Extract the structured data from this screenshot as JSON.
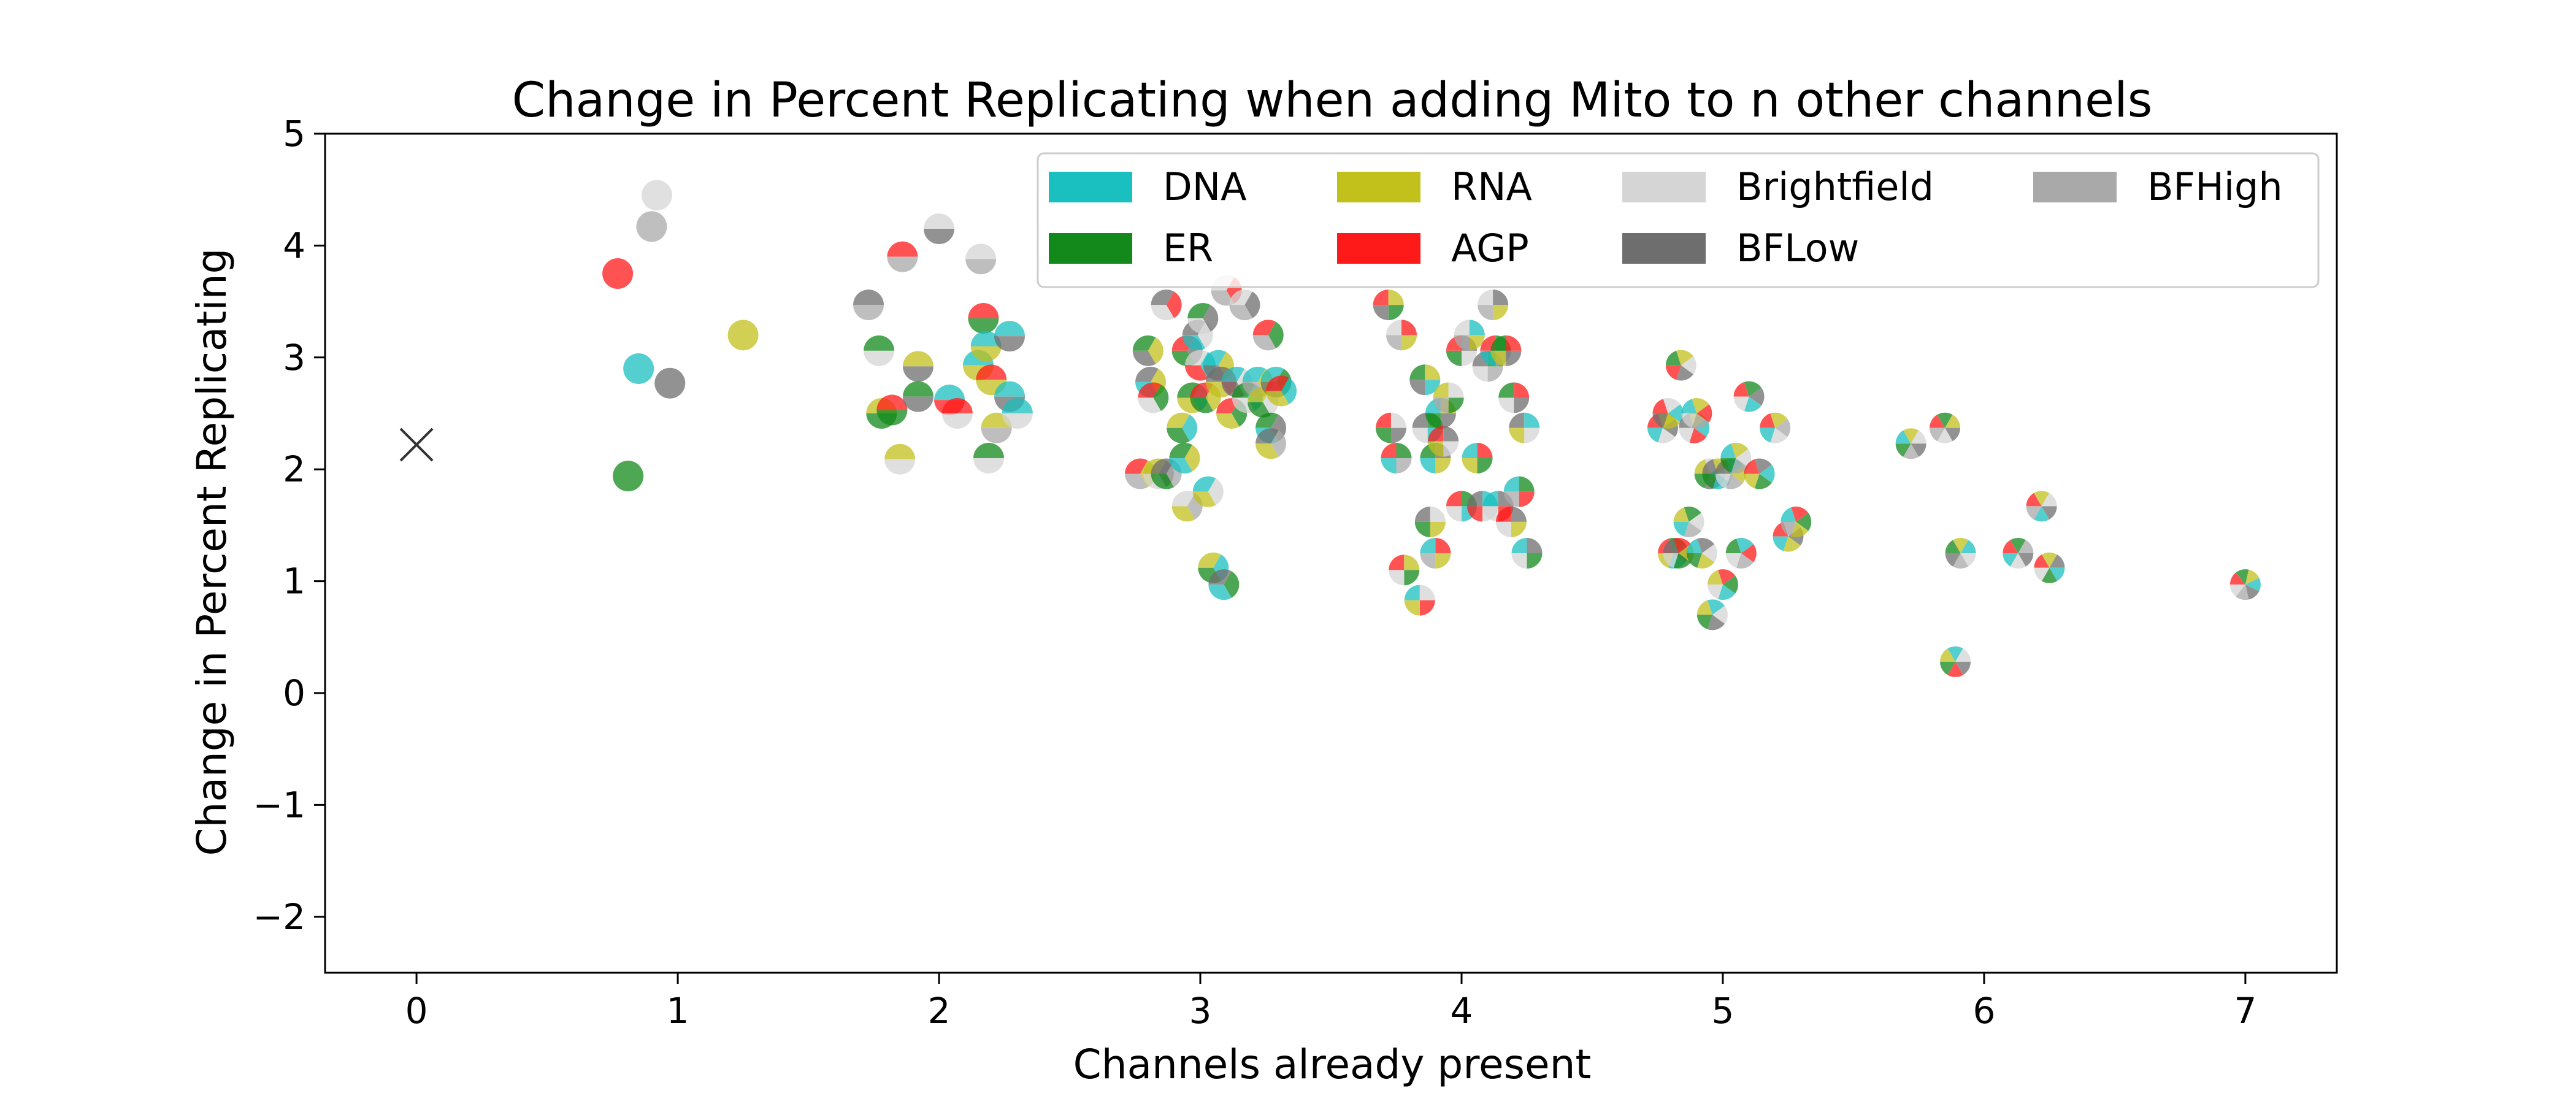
{
  "chart_data": {
    "type": "scatter",
    "title": "Change in Percent Replicating when adding Mito to n other channels",
    "xlabel": "Channels already present",
    "ylabel": "Change in Percent Replicating",
    "xlim": [
      -0.35,
      7.35
    ],
    "ylim": [
      -2.5,
      5
    ],
    "xticks": [
      0,
      1,
      2,
      3,
      4,
      5,
      6,
      7
    ],
    "yticks": [
      -2,
      -1,
      0,
      1,
      2,
      3,
      4,
      5
    ],
    "grid": false,
    "legend_position": "top-right",
    "legend_ncol": 4,
    "channels": [
      {
        "key": "DNA",
        "name": "DNA",
        "color": "#1ABFC0"
      },
      {
        "key": "ER",
        "name": "ER",
        "color": "#12891A"
      },
      {
        "key": "RNA",
        "name": "RNA",
        "color": "#C2C01B"
      },
      {
        "key": "AGP",
        "name": "AGP",
        "color": "#FF1A1A"
      },
      {
        "key": "Brightfield",
        "name": "Brightfield",
        "color": "#D5D5D5"
      },
      {
        "key": "BFLow",
        "name": "BFLow",
        "color": "#6E6E6E"
      },
      {
        "key": "BFHigh",
        "name": "BFHigh",
        "color": "#A9A9A9"
      }
    ],
    "baseline_point": {
      "x": 0,
      "y": 2.22,
      "marker": "x"
    },
    "points": [
      {
        "x": 0.77,
        "y": 3.75,
        "channels": [
          "AGP"
        ]
      },
      {
        "x": 0.85,
        "y": 2.9,
        "channels": [
          "DNA"
        ]
      },
      {
        "x": 0.81,
        "y": 1.94,
        "channels": [
          "ER"
        ]
      },
      {
        "x": 0.92,
        "y": 4.45,
        "channels": [
          "Brightfield"
        ]
      },
      {
        "x": 0.9,
        "y": 4.17,
        "channels": [
          "BFHigh"
        ]
      },
      {
        "x": 0.97,
        "y": 2.77,
        "channels": [
          "BFLow"
        ]
      },
      {
        "x": 1.25,
        "y": 3.2,
        "channels": [
          "RNA"
        ]
      },
      {
        "x": 1.73,
        "y": 3.47,
        "channels": [
          "BFLow",
          "BFHigh"
        ]
      },
      {
        "x": 1.77,
        "y": 3.06,
        "channels": [
          "ER",
          "Brightfield"
        ]
      },
      {
        "x": 1.78,
        "y": 2.5,
        "channels": [
          "RNA",
          "ER"
        ]
      },
      {
        "x": 1.82,
        "y": 2.53,
        "channels": [
          "AGP",
          "ER"
        ]
      },
      {
        "x": 1.86,
        "y": 3.9,
        "channels": [
          "AGP",
          "BFHigh"
        ]
      },
      {
        "x": 1.85,
        "y": 2.09,
        "channels": [
          "RNA",
          "Brightfield"
        ]
      },
      {
        "x": 1.92,
        "y": 2.92,
        "channels": [
          "RNA",
          "BFLow"
        ]
      },
      {
        "x": 1.92,
        "y": 2.65,
        "channels": [
          "ER",
          "BFLow"
        ]
      },
      {
        "x": 2.0,
        "y": 4.15,
        "channels": [
          "Brightfield",
          "BFLow"
        ]
      },
      {
        "x": 2.04,
        "y": 2.62,
        "channels": [
          "DNA",
          "AGP"
        ]
      },
      {
        "x": 2.07,
        "y": 2.5,
        "channels": [
          "AGP",
          "Brightfield"
        ]
      },
      {
        "x": 2.15,
        "y": 2.93,
        "channels": [
          "DNA",
          "RNA"
        ]
      },
      {
        "x": 2.17,
        "y": 3.35,
        "channels": [
          "AGP",
          "ER"
        ]
      },
      {
        "x": 2.18,
        "y": 3.1,
        "channels": [
          "DNA",
          "RNA"
        ]
      },
      {
        "x": 2.16,
        "y": 3.88,
        "channels": [
          "Brightfield",
          "BFHigh"
        ]
      },
      {
        "x": 2.2,
        "y": 2.8,
        "channels": [
          "AGP",
          "RNA"
        ]
      },
      {
        "x": 2.19,
        "y": 2.1,
        "channels": [
          "ER",
          "Brightfield"
        ]
      },
      {
        "x": 2.22,
        "y": 2.37,
        "channels": [
          "RNA",
          "BFHigh"
        ]
      },
      {
        "x": 2.27,
        "y": 2.65,
        "channels": [
          "DNA",
          "BFLow"
        ]
      },
      {
        "x": 2.27,
        "y": 3.19,
        "channels": [
          "DNA",
          "BFLow"
        ]
      },
      {
        "x": 2.3,
        "y": 2.5,
        "channels": [
          "DNA",
          "Brightfield"
        ]
      },
      {
        "x": 2.77,
        "y": 1.96,
        "channels": [
          "AGP",
          "RNA",
          "BFHigh"
        ]
      },
      {
        "x": 2.8,
        "y": 3.06,
        "channels": [
          "ER",
          "RNA",
          "BFLow"
        ]
      },
      {
        "x": 2.81,
        "y": 2.78,
        "channels": [
          "BFLow",
          "RNA",
          "DNA"
        ]
      },
      {
        "x": 2.82,
        "y": 2.64,
        "channels": [
          "AGP",
          "ER",
          "Brightfield"
        ]
      },
      {
        "x": 2.84,
        "y": 1.96,
        "channels": [
          "RNA",
          "BFLow",
          "Brightfield"
        ]
      },
      {
        "x": 2.87,
        "y": 1.96,
        "channels": [
          "BFLow",
          "BFHigh",
          "ER"
        ]
      },
      {
        "x": 2.87,
        "y": 3.47,
        "channels": [
          "BFLow",
          "AGP",
          "Brightfield"
        ]
      },
      {
        "x": 2.93,
        "y": 2.37,
        "channels": [
          "RNA",
          "DNA",
          "ER"
        ]
      },
      {
        "x": 2.94,
        "y": 2.1,
        "channels": [
          "ER",
          "RNA",
          "DNA"
        ]
      },
      {
        "x": 2.95,
        "y": 1.67,
        "channels": [
          "Brightfield",
          "BFHigh",
          "RNA"
        ]
      },
      {
        "x": 2.95,
        "y": 3.06,
        "channels": [
          "AGP",
          "BFLow",
          "ER"
        ]
      },
      {
        "x": 2.97,
        "y": 2.64,
        "channels": [
          "ER",
          "DNA",
          "RNA"
        ]
      },
      {
        "x": 2.99,
        "y": 3.2,
        "channels": [
          "BFLow",
          "Brightfield",
          "DNA"
        ]
      },
      {
        "x": 3.0,
        "y": 2.93,
        "channels": [
          "Brightfield",
          "DNA",
          "AGP"
        ]
      },
      {
        "x": 3.01,
        "y": 3.35,
        "channels": [
          "ER",
          "BFLow",
          "Brightfield"
        ]
      },
      {
        "x": 3.02,
        "y": 2.64,
        "channels": [
          "AGP",
          "RNA",
          "ER"
        ]
      },
      {
        "x": 3.03,
        "y": 1.8,
        "channels": [
          "DNA",
          "Brightfield",
          "RNA"
        ]
      },
      {
        "x": 3.05,
        "y": 1.12,
        "channels": [
          "RNA",
          "DNA",
          "ER"
        ]
      },
      {
        "x": 3.07,
        "y": 2.93,
        "channels": [
          "DNA",
          "RNA",
          "BFLow"
        ]
      },
      {
        "x": 3.08,
        "y": 2.78,
        "channels": [
          "BFLow",
          "AGP",
          "RNA"
        ]
      },
      {
        "x": 3.09,
        "y": 0.97,
        "channels": [
          "BFLow",
          "ER",
          "DNA"
        ]
      },
      {
        "x": 3.1,
        "y": 3.6,
        "channels": [
          "Brightfield",
          "AGP",
          "BFHigh"
        ]
      },
      {
        "x": 3.12,
        "y": 2.5,
        "channels": [
          "AGP",
          "ER",
          "RNA"
        ]
      },
      {
        "x": 3.14,
        "y": 2.78,
        "channels": [
          "DNA",
          "Brightfield",
          "BFLow"
        ]
      },
      {
        "x": 3.17,
        "y": 3.47,
        "channels": [
          "Brightfield",
          "BFLow",
          "BFHigh"
        ]
      },
      {
        "x": 3.18,
        "y": 2.64,
        "channels": [
          "ER",
          "DNA",
          "Brightfield"
        ]
      },
      {
        "x": 3.22,
        "y": 2.78,
        "channels": [
          "DNA",
          "RNA",
          "BFHigh"
        ]
      },
      {
        "x": 3.24,
        "y": 2.6,
        "channels": [
          "RNA",
          "Brightfield",
          "ER"
        ]
      },
      {
        "x": 3.26,
        "y": 3.2,
        "channels": [
          "AGP",
          "ER",
          "BFHigh"
        ]
      },
      {
        "x": 3.27,
        "y": 2.37,
        "channels": [
          "ER",
          "BFLow",
          "DNA"
        ]
      },
      {
        "x": 3.27,
        "y": 2.23,
        "channels": [
          "BFLow",
          "BFHigh",
          "RNA"
        ]
      },
      {
        "x": 3.29,
        "y": 2.78,
        "channels": [
          "DNA",
          "ER",
          "BFLow"
        ]
      },
      {
        "x": 3.31,
        "y": 2.7,
        "channels": [
          "AGP",
          "DNA",
          "RNA"
        ]
      },
      {
        "x": 3.72,
        "y": 3.47,
        "channels": [
          "AGP",
          "RNA",
          "ER",
          "BFLow"
        ]
      },
      {
        "x": 3.73,
        "y": 2.37,
        "channels": [
          "AGP",
          "Brightfield",
          "BFLow",
          "ER"
        ]
      },
      {
        "x": 3.75,
        "y": 2.1,
        "channels": [
          "AGP",
          "ER",
          "BFHigh",
          "DNA"
        ]
      },
      {
        "x": 3.77,
        "y": 3.2,
        "channels": [
          "Brightfield",
          "AGP",
          "RNA",
          "BFHigh"
        ]
      },
      {
        "x": 3.78,
        "y": 1.1,
        "channels": [
          "AGP",
          "RNA",
          "ER",
          "Brightfield"
        ]
      },
      {
        "x": 3.84,
        "y": 0.83,
        "channels": [
          "DNA",
          "Brightfield",
          "AGP",
          "RNA"
        ]
      },
      {
        "x": 3.86,
        "y": 2.8,
        "channels": [
          "ER",
          "RNA",
          "DNA",
          "BFLow"
        ]
      },
      {
        "x": 3.87,
        "y": 2.37,
        "channels": [
          "BFLow",
          "ER",
          "DNA",
          "Brightfield"
        ]
      },
      {
        "x": 3.88,
        "y": 1.53,
        "channels": [
          "BFLow",
          "Brightfield",
          "RNA",
          "ER"
        ]
      },
      {
        "x": 3.9,
        "y": 2.1,
        "channels": [
          "ER",
          "BFLow",
          "RNA",
          "DNA"
        ]
      },
      {
        "x": 3.9,
        "y": 1.25,
        "channels": [
          "DNA",
          "AGP",
          "RNA",
          "BFHigh"
        ]
      },
      {
        "x": 3.92,
        "y": 2.5,
        "channels": [
          "DNA",
          "RNA",
          "BFLow",
          "ER"
        ]
      },
      {
        "x": 3.93,
        "y": 2.25,
        "channels": [
          "AGP",
          "BFLow",
          "Brightfield",
          "RNA"
        ]
      },
      {
        "x": 3.95,
        "y": 2.64,
        "channels": [
          "RNA",
          "Brightfield",
          "ER",
          "BFHigh"
        ]
      },
      {
        "x": 4.0,
        "y": 3.06,
        "channels": [
          "AGP",
          "BFLow",
          "Brightfield",
          "ER"
        ]
      },
      {
        "x": 4.0,
        "y": 1.67,
        "channels": [
          "AGP",
          "ER",
          "DNA",
          "Brightfield"
        ]
      },
      {
        "x": 4.03,
        "y": 3.2,
        "channels": [
          "Brightfield",
          "DNA",
          "RNA",
          "BFHigh"
        ]
      },
      {
        "x": 4.06,
        "y": 2.1,
        "channels": [
          "DNA",
          "AGP",
          "ER",
          "RNA"
        ]
      },
      {
        "x": 4.08,
        "y": 1.67,
        "channels": [
          "BFLow",
          "DNA",
          "Brightfield",
          "AGP"
        ]
      },
      {
        "x": 4.1,
        "y": 2.92,
        "channels": [
          "BFLow",
          "ER",
          "BFHigh",
          "Brightfield"
        ]
      },
      {
        "x": 4.12,
        "y": 3.47,
        "channels": [
          "Brightfield",
          "BFLow",
          "RNA",
          "BFHigh"
        ]
      },
      {
        "x": 4.13,
        "y": 3.06,
        "channels": [
          "AGP",
          "ER",
          "BFHigh",
          "DNA"
        ]
      },
      {
        "x": 4.14,
        "y": 1.67,
        "channels": [
          "DNA",
          "BFLow",
          "AGP",
          "Brightfield"
        ]
      },
      {
        "x": 4.17,
        "y": 3.06,
        "channels": [
          "ER",
          "AGP",
          "BFLow",
          "RNA"
        ]
      },
      {
        "x": 4.19,
        "y": 1.53,
        "channels": [
          "AGP",
          "BFLow",
          "RNA",
          "Brightfield"
        ]
      },
      {
        "x": 4.2,
        "y": 2.64,
        "channels": [
          "ER",
          "AGP",
          "BFLow",
          "Brightfield"
        ]
      },
      {
        "x": 4.22,
        "y": 1.8,
        "channels": [
          "DNA",
          "ER",
          "AGP",
          "BFHigh"
        ]
      },
      {
        "x": 4.24,
        "y": 2.37,
        "channels": [
          "BFLow",
          "DNA",
          "Brightfield",
          "RNA"
        ]
      },
      {
        "x": 4.25,
        "y": 1.25,
        "channels": [
          "DNA",
          "BFLow",
          "ER",
          "Brightfield"
        ]
      },
      {
        "x": 4.77,
        "y": 2.37,
        "channels": [
          "AGP",
          "RNA",
          "BFLow",
          "Brightfield",
          "DNA"
        ]
      },
      {
        "x": 4.79,
        "y": 2.5,
        "channels": [
          "AGP",
          "Brightfield",
          "DNA",
          "RNA",
          "BFLow"
        ]
      },
      {
        "x": 4.81,
        "y": 1.25,
        "channels": [
          "AGP",
          "ER",
          "BFLow",
          "DNA",
          "RNA"
        ]
      },
      {
        "x": 4.83,
        "y": 1.25,
        "channels": [
          "BFLow",
          "AGP",
          "RNA",
          "ER",
          "Brightfield"
        ]
      },
      {
        "x": 4.84,
        "y": 2.93,
        "channels": [
          "ER",
          "RNA",
          "Brightfield",
          "BFLow",
          "AGP"
        ]
      },
      {
        "x": 4.87,
        "y": 1.53,
        "channels": [
          "RNA",
          "ER",
          "Brightfield",
          "BFHigh",
          "DNA"
        ]
      },
      {
        "x": 4.89,
        "y": 2.37,
        "channels": [
          "BFLow",
          "RNA",
          "DNA",
          "AGP",
          "Brightfield"
        ]
      },
      {
        "x": 4.9,
        "y": 2.5,
        "channels": [
          "DNA",
          "RNA",
          "AGP",
          "BFHigh",
          "Brightfield"
        ]
      },
      {
        "x": 4.92,
        "y": 1.25,
        "channels": [
          "DNA",
          "BFLow",
          "Brightfield",
          "RNA",
          "ER"
        ]
      },
      {
        "x": 4.95,
        "y": 1.96,
        "channels": [
          "RNA",
          "Brightfield",
          "DNA",
          "BFLow",
          "ER"
        ]
      },
      {
        "x": 4.96,
        "y": 0.7,
        "channels": [
          "RNA",
          "DNA",
          "Brightfield",
          "BFLow",
          "ER"
        ]
      },
      {
        "x": 4.98,
        "y": 1.96,
        "channels": [
          "BFLow",
          "RNA",
          "Brightfield",
          "DNA",
          "ER"
        ]
      },
      {
        "x": 5.0,
        "y": 0.97,
        "channels": [
          "RNA",
          "AGP",
          "ER",
          "DNA",
          "Brightfield"
        ]
      },
      {
        "x": 5.03,
        "y": 1.96,
        "channels": [
          "BFLow",
          "DNA",
          "RNA",
          "BFHigh",
          "Brightfield"
        ]
      },
      {
        "x": 5.05,
        "y": 2.1,
        "channels": [
          "DNA",
          "RNA",
          "Brightfield",
          "BFHigh",
          "ER"
        ]
      },
      {
        "x": 5.07,
        "y": 1.25,
        "channels": [
          "ER",
          "DNA",
          "AGP",
          "BFHigh",
          "Brightfield"
        ]
      },
      {
        "x": 5.1,
        "y": 2.65,
        "channels": [
          "AGP",
          "ER",
          "BFLow",
          "DNA",
          "Brightfield"
        ]
      },
      {
        "x": 5.14,
        "y": 1.96,
        "channels": [
          "AGP",
          "BFLow",
          "DNA",
          "ER",
          "RNA"
        ]
      },
      {
        "x": 5.2,
        "y": 2.37,
        "channels": [
          "AGP",
          "RNA",
          "BFHigh",
          "Brightfield",
          "DNA"
        ]
      },
      {
        "x": 5.25,
        "y": 1.4,
        "channels": [
          "AGP",
          "Brightfield",
          "BFLow",
          "RNA",
          "DNA"
        ]
      },
      {
        "x": 5.28,
        "y": 1.53,
        "channels": [
          "DNA",
          "AGP",
          "ER",
          "RNA",
          "BFHigh"
        ]
      },
      {
        "x": 5.72,
        "y": 2.23,
        "channels": [
          "DNA",
          "RNA",
          "Brightfield",
          "BFLow",
          "BFHigh",
          "ER"
        ]
      },
      {
        "x": 5.85,
        "y": 2.37,
        "channels": [
          "AGP",
          "ER",
          "RNA",
          "BFLow",
          "Brightfield",
          "BFHigh"
        ]
      },
      {
        "x": 5.89,
        "y": 0.28,
        "channels": [
          "RNA",
          "DNA",
          "Brightfield",
          "BFLow",
          "AGP",
          "ER"
        ]
      },
      {
        "x": 5.91,
        "y": 1.25,
        "channels": [
          "ER",
          "RNA",
          "DNA",
          "Brightfield",
          "BFHigh",
          "BFLow"
        ]
      },
      {
        "x": 6.13,
        "y": 1.25,
        "channels": [
          "AGP",
          "ER",
          "BFHigh",
          "BFLow",
          "Brightfield",
          "DNA"
        ]
      },
      {
        "x": 6.22,
        "y": 1.67,
        "channels": [
          "AGP",
          "RNA",
          "Brightfield",
          "BFLow",
          "DNA",
          "BFHigh"
        ]
      },
      {
        "x": 6.25,
        "y": 1.12,
        "channels": [
          "AGP",
          "RNA",
          "BFLow",
          "DNA",
          "ER",
          "Brightfield"
        ]
      },
      {
        "x": 7.0,
        "y": 0.97,
        "channels": [
          "AGP",
          "ER",
          "RNA",
          "DNA",
          "BFLow",
          "BFHigh",
          "Brightfield"
        ]
      }
    ]
  }
}
